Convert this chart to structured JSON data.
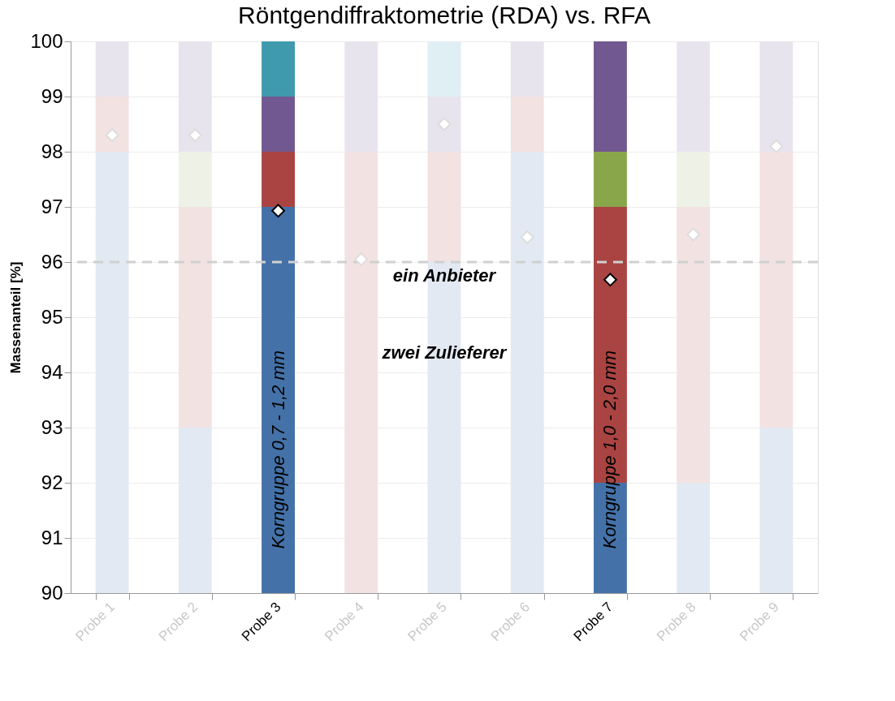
{
  "chart_data": {
    "type": "bar",
    "title": "Röntgendiffraktometrie (RDA) vs. RFA",
    "ylabel": "Massenanteil [%]",
    "categories": [
      "Probe 1",
      "Probe 2",
      "Probe 3",
      "Probe 4",
      "Probe 5",
      "Probe 6",
      "Probe 7",
      "Probe 8",
      "Probe 9"
    ],
    "series": [
      {
        "type": "bar",
        "base": [
          90,
          90,
          90,
          null,
          90,
          90,
          90,
          90,
          90
        ],
        "values": [
          8,
          3,
          7,
          null,
          6,
          8,
          2,
          2,
          3
        ],
        "colors": [
          "#e3e9f2",
          "#e3e9f2",
          "#4472a8",
          "#e3e9f2",
          "#e3e9f2",
          "#e3e9f2",
          "#4472a8",
          "#e3e9f2",
          "#e3e9f2"
        ]
      },
      {
        "type": "bar",
        "base": [
          98,
          93,
          97,
          90,
          96,
          98,
          92,
          92,
          93
        ],
        "values": [
          1,
          4,
          1,
          8,
          2,
          1,
          5,
          5,
          5
        ],
        "colors": [
          "#f2e2e2",
          "#f2e2e2",
          "#a94442",
          "#f2e2e2",
          "#f2e2e2",
          "#f2e2e2",
          "#a94442",
          "#f2e2e2",
          "#f2e2e2"
        ]
      },
      {
        "type": "bar",
        "base": [
          null,
          97,
          null,
          null,
          null,
          null,
          97,
          97,
          null
        ],
        "values": [
          null,
          1,
          null,
          null,
          null,
          null,
          1,
          1,
          null
        ],
        "colors": [
          "#eef2e6",
          "#eef2e6",
          "#8aa64b",
          "#eef2e6",
          "#eef2e6",
          "#eef2e6",
          "#8aa64b",
          "#eef2e6",
          "#eef2e6"
        ]
      },
      {
        "type": "bar",
        "base": [
          99,
          98,
          98,
          98,
          98,
          99,
          98,
          98,
          98
        ],
        "values": [
          1,
          2,
          1,
          2,
          1,
          1,
          2,
          2,
          2
        ],
        "colors": [
          "#e8e4ee",
          "#e8e4ee",
          "#715890",
          "#e8e4ee",
          "#e8e4ee",
          "#e8e4ee",
          "#715890",
          "#e8e4ee",
          "#e8e4ee"
        ]
      },
      {
        "type": "bar",
        "base": [
          null,
          null,
          99,
          null,
          99,
          null,
          null,
          null,
          null
        ],
        "values": [
          null,
          null,
          1,
          null,
          1,
          null,
          null,
          null,
          null
        ],
        "colors": [
          "#e0eff3",
          "#e0eff3",
          "#3f9aae",
          "#e0eff3",
          "#e0eff3",
          "#e0eff3",
          "#3f9aae",
          "#e0eff3",
          "#e0eff3"
        ]
      },
      {
        "type": "scatter",
        "marker": "diamond",
        "color": "#ffffff",
        "x": [
          "Probe 1",
          "Probe 2",
          "Probe 3",
          "Probe 4",
          "Probe 5",
          "Probe 6",
          "Probe 7",
          "Probe 8",
          "Probe 9"
        ],
        "values": [
          98.3,
          98.3,
          96.93,
          96.05,
          98.5,
          96.45,
          95.68,
          96.5,
          98.1
        ]
      }
    ],
    "ylim": [
      90,
      100
    ],
    "yticks": [
      90,
      91,
      92,
      93,
      94,
      95,
      96,
      97,
      98,
      99,
      100
    ],
    "grid": "y",
    "ref_lines": [
      {
        "axis": "y",
        "value": 96,
        "color": "#d0d0d0",
        "line_style": "dashed"
      }
    ],
    "annotations": [
      {
        "text": "ein Anbieter",
        "x": "Probe 5",
        "y": 95.75
      },
      {
        "text": "zwei Zulieferer",
        "x": "Probe 5",
        "y": 94.35
      },
      {
        "text": "Korngruppe 0,7 - 1,2 mm",
        "x": "Probe 3",
        "y": 92.6
      },
      {
        "text": "Korngruppe 1,0 - 2,0 mm",
        "x": "Probe 7",
        "y": 92.6
      }
    ]
  }
}
